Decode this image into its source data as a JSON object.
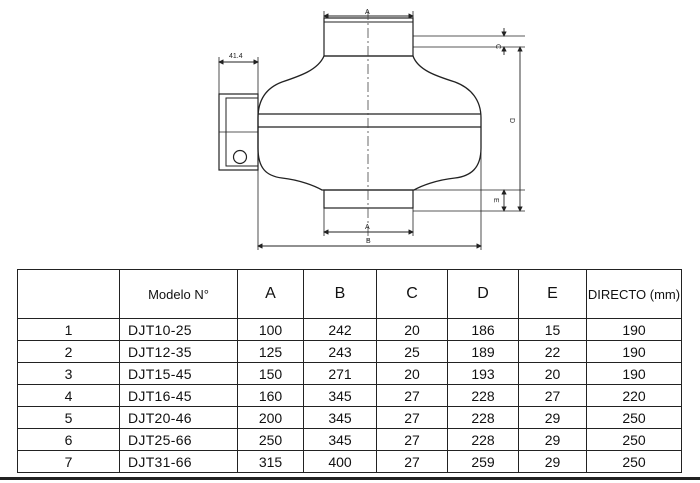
{
  "drawing": {
    "dims": {
      "a_top": "A",
      "c": "C",
      "d": "D",
      "e": "E",
      "a_bottom": "A",
      "b": "B",
      "flange": "41.4"
    }
  },
  "table": {
    "headers": [
      "",
      "Modelo N°",
      "A",
      "B",
      "C",
      "D",
      "E",
      "DIRECTO (mm)"
    ],
    "rows": [
      [
        "1",
        "DJT10-25",
        "100",
        "242",
        "20",
        "186",
        "15",
        "190"
      ],
      [
        "2",
        "DJT12-35",
        "125",
        "243",
        "25",
        "189",
        "22",
        "190"
      ],
      [
        "3",
        "DJT15-45",
        "150",
        "271",
        "20",
        "193",
        "20",
        "190"
      ],
      [
        "4",
        "DJT16-45",
        "160",
        "345",
        "27",
        "228",
        "27",
        "220"
      ],
      [
        "5",
        "DJT20-46",
        "200",
        "345",
        "27",
        "228",
        "29",
        "250"
      ],
      [
        "6",
        "DJT25-66",
        "250",
        "345",
        "27",
        "228",
        "29",
        "250"
      ],
      [
        "7",
        "DJT31-66",
        "315",
        "400",
        "27",
        "259",
        "29",
        "250"
      ]
    ]
  }
}
